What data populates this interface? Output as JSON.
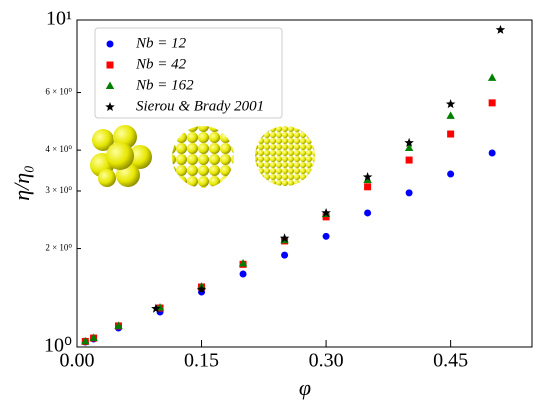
{
  "chart_data": {
    "type": "scatter",
    "yscale": "log",
    "xlabel": "φ",
    "ylabel": "η/η₀",
    "xlim": [
      0,
      0.548
    ],
    "ylim": [
      1,
      10
    ],
    "xticks": [
      {
        "value": 0,
        "label": "0.00"
      },
      {
        "value": 0.15,
        "label": "0.15"
      },
      {
        "value": 0.3,
        "label": "0.30"
      },
      {
        "value": 0.45,
        "label": "0.45"
      }
    ],
    "yticks": [
      {
        "value": 1,
        "label": "10⁰"
      },
      {
        "value": 2,
        "label": "2 × 10⁰"
      },
      {
        "value": 3,
        "label": "3 × 10⁰"
      },
      {
        "value": 4,
        "label": "4 × 10⁰"
      },
      {
        "value": 6,
        "label": "6 × 10⁰"
      },
      {
        "value": 10,
        "label": "10¹"
      }
    ],
    "legend": "upper left",
    "series": [
      {
        "name": "Nb = 12",
        "color": "#0000ff",
        "marker": "circle",
        "x": [
          0.01,
          0.02,
          0.05,
          0.1,
          0.15,
          0.2,
          0.25,
          0.3,
          0.35,
          0.4,
          0.45,
          0.5
        ],
        "values": [
          1.036,
          1.058,
          1.143,
          1.279,
          1.473,
          1.672,
          1.91,
          2.18,
          2.57,
          2.96,
          3.38,
          3.92
        ]
      },
      {
        "name": "Nb = 42",
        "color": "#ff0000",
        "marker": "square",
        "x": [
          0.01,
          0.02,
          0.05,
          0.1,
          0.15,
          0.2,
          0.25,
          0.3,
          0.35,
          0.4,
          0.45,
          0.5
        ],
        "values": [
          1.04,
          1.065,
          1.16,
          1.316,
          1.526,
          1.79,
          2.11,
          2.5,
          3.09,
          3.73,
          4.48,
          5.58
        ]
      },
      {
        "name": "Nb = 162",
        "color": "#008000",
        "marker": "triangle",
        "x": [
          0.01,
          0.02,
          0.05,
          0.1,
          0.15,
          0.2,
          0.25,
          0.3,
          0.35,
          0.4,
          0.45,
          0.5
        ],
        "values": [
          1.04,
          1.065,
          1.16,
          1.32,
          1.53,
          1.8,
          2.12,
          2.55,
          3.24,
          4.06,
          5.09,
          6.65
        ]
      },
      {
        "name": "Sierou & Brady 2001",
        "color": "#000000",
        "marker": "star",
        "x": [
          0.095,
          0.15,
          0.25,
          0.3,
          0.35,
          0.4,
          0.45,
          0.51
        ],
        "values": [
          1.31,
          1.5,
          2.15,
          2.57,
          3.31,
          4.21,
          5.53,
          9.33
        ]
      }
    ]
  }
}
